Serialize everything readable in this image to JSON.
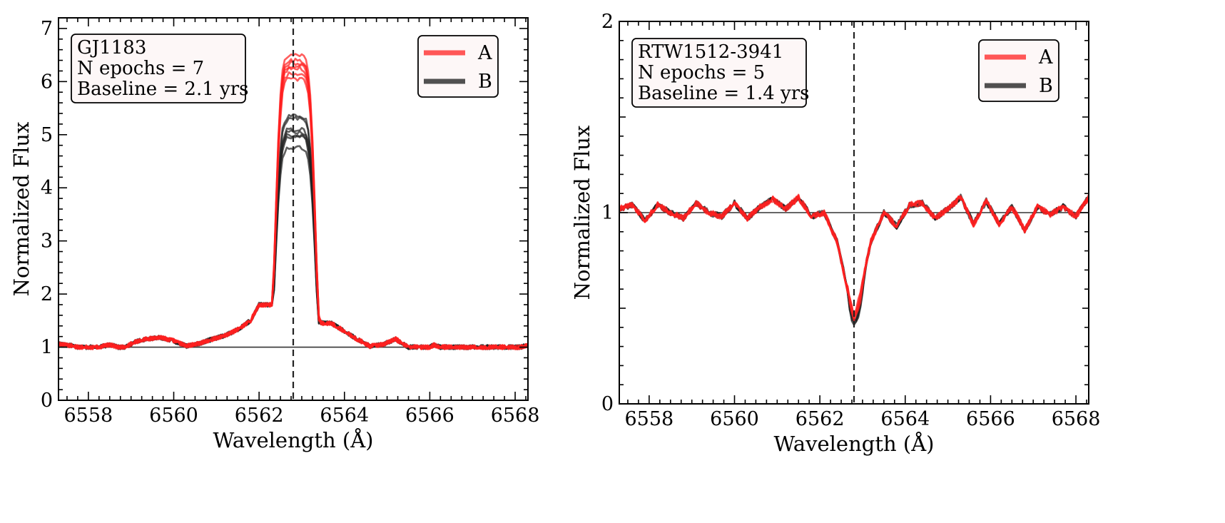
{
  "chart_data": [
    {
      "type": "line",
      "xlabel": "Wavelength (Å)",
      "ylabel": "Normalized Flux",
      "xlim": [
        6557.3,
        6568.3
      ],
      "ylim": [
        0,
        7.2
      ],
      "xticks": [
        6558,
        6560,
        6562,
        6564,
        6566,
        6568
      ],
      "yticks": [
        0,
        1,
        2,
        3,
        4,
        5,
        6,
        7
      ],
      "reference_line_y": 1,
      "reference_line_x": 6562.8,
      "info_box": [
        "GJ1183",
        "N epochs = 7",
        "Baseline = 2.1 yrs"
      ],
      "legend": {
        "placement": "top-right",
        "entries": [
          {
            "label": "A",
            "color": "#ff3b3b"
          },
          {
            "label": "B",
            "color": "#333333"
          }
        ]
      },
      "line_profile": "emission",
      "series": [
        {
          "name": "A",
          "color": "#ff2020",
          "epochs": 7,
          "peak_values": [
            6.5,
            6.4,
            6.35,
            6.3,
            6.25,
            6.15,
            6.05
          ]
        },
        {
          "name": "B",
          "color": "#222222",
          "epochs": 7,
          "peak_values": [
            5.35,
            5.3,
            5.1,
            5.05,
            5.0,
            4.95,
            4.75
          ]
        }
      ],
      "base_points": [
        [
          6557.3,
          1.06
        ],
        [
          6557.6,
          1.03
        ],
        [
          6557.9,
          0.95
        ],
        [
          6558.2,
          0.99
        ],
        [
          6558.5,
          1.05
        ],
        [
          6558.8,
          0.97
        ],
        [
          6559.1,
          1.1
        ],
        [
          6559.4,
          1.16
        ],
        [
          6559.7,
          1.18
        ],
        [
          6560.0,
          1.12
        ],
        [
          6560.3,
          1.02
        ],
        [
          6560.6,
          1.07
        ],
        [
          6560.9,
          1.15
        ],
        [
          6561.2,
          1.22
        ],
        [
          6561.5,
          1.33
        ],
        [
          6561.8,
          1.5
        ],
        [
          6562.0,
          1.8
        ]
      ],
      "wing_points": [
        [
          6563.7,
          1.45
        ],
        [
          6564.0,
          1.3
        ],
        [
          6564.3,
          1.15
        ],
        [
          6564.6,
          1.02
        ],
        [
          6564.9,
          1.05
        ],
        [
          6565.2,
          1.15
        ],
        [
          6565.5,
          1.0
        ],
        [
          6565.8,
          0.93
        ],
        [
          6566.1,
          1.04
        ],
        [
          6566.4,
          0.96
        ],
        [
          6566.7,
          0.92
        ],
        [
          6567.0,
          0.98
        ],
        [
          6567.3,
          0.95
        ],
        [
          6567.6,
          0.94
        ],
        [
          6567.9,
          0.95
        ],
        [
          6568.3,
          1.04
        ]
      ]
    },
    {
      "type": "line",
      "xlabel": "Wavelength (Å)",
      "ylabel": "Normalized Flux",
      "xlim": [
        6557.3,
        6568.3
      ],
      "ylim": [
        0,
        2
      ],
      "xticks": [
        6558,
        6560,
        6562,
        6564,
        6566,
        6568
      ],
      "yticks": [
        0,
        1,
        2
      ],
      "reference_line_y": 1,
      "reference_line_x": 6562.8,
      "info_box": [
        "RTW1512-3941",
        "N epochs = 5",
        "Baseline = 1.4 yrs"
      ],
      "legend": {
        "placement": "top-right",
        "entries": [
          {
            "label": "A",
            "color": "#ff3b3b"
          },
          {
            "label": "B",
            "color": "#333333"
          }
        ]
      },
      "line_profile": "absorption",
      "series": [
        {
          "name": "A",
          "color": "#ff2020",
          "epochs": 5,
          "min_values": [
            0.5,
            0.48,
            0.47,
            0.46,
            0.45
          ]
        },
        {
          "name": "B",
          "color": "#222222",
          "epochs": 5,
          "min_values": [
            0.44,
            0.43,
            0.42,
            0.42,
            0.41
          ]
        }
      ],
      "continuum_points": [
        [
          6557.3,
          1.02
        ],
        [
          6557.6,
          1.04
        ],
        [
          6557.9,
          0.96
        ],
        [
          6558.2,
          1.04
        ],
        [
          6558.5,
          1.0
        ],
        [
          6558.8,
          0.97
        ],
        [
          6559.1,
          1.05
        ],
        [
          6559.4,
          1.0
        ],
        [
          6559.7,
          0.98
        ],
        [
          6560.0,
          1.05
        ],
        [
          6560.3,
          0.97
        ],
        [
          6560.6,
          1.03
        ],
        [
          6560.9,
          1.07
        ],
        [
          6561.2,
          1.02
        ],
        [
          6561.5,
          1.08
        ],
        [
          6561.8,
          0.98
        ],
        [
          6562.1,
          1.0
        ],
        [
          6562.4,
          0.85
        ],
        [
          6562.8,
          0.45
        ],
        [
          6563.2,
          0.85
        ],
        [
          6563.5,
          1.0
        ],
        [
          6563.8,
          0.93
        ],
        [
          6564.1,
          1.04
        ],
        [
          6564.4,
          1.05
        ],
        [
          6564.7,
          0.97
        ],
        [
          6565.0,
          1.02
        ],
        [
          6565.3,
          1.08
        ],
        [
          6565.6,
          0.94
        ],
        [
          6565.9,
          1.06
        ],
        [
          6566.2,
          0.94
        ],
        [
          6566.5,
          1.03
        ],
        [
          6566.8,
          0.91
        ],
        [
          6567.1,
          1.03
        ],
        [
          6567.4,
          0.99
        ],
        [
          6567.7,
          1.03
        ],
        [
          6568.0,
          0.98
        ],
        [
          6568.3,
          1.08
        ]
      ]
    }
  ]
}
